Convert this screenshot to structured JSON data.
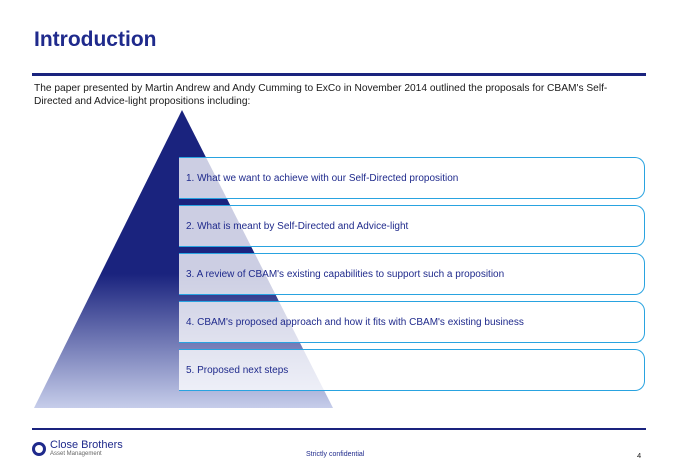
{
  "header": {
    "title": "Introduction",
    "intro_text": "The paper presented by Martin Andrew and Andy Cumming to ExCo in November 2014 outlined the proposals for CBAM's Self-Directed and Advice-light propositions including:"
  },
  "steps": [
    "1. What we want to achieve with our Self-Directed proposition",
    "2. What is meant by Self-Directed and Advice-light",
    "3. A review of CBAM's existing capabilities to support such a proposition",
    "4. CBAM's proposed approach and how it fits with CBAM's existing business",
    "5. Proposed next steps"
  ],
  "colors": {
    "primary": "#1f2a8c",
    "pyramid_light": "#c6cdea",
    "accent_border": "#29a3e0"
  },
  "footer": {
    "logo_name": "Close Brothers",
    "logo_sub": "Asset Management",
    "confidential": "Strictly confidential",
    "page_number": "4"
  }
}
